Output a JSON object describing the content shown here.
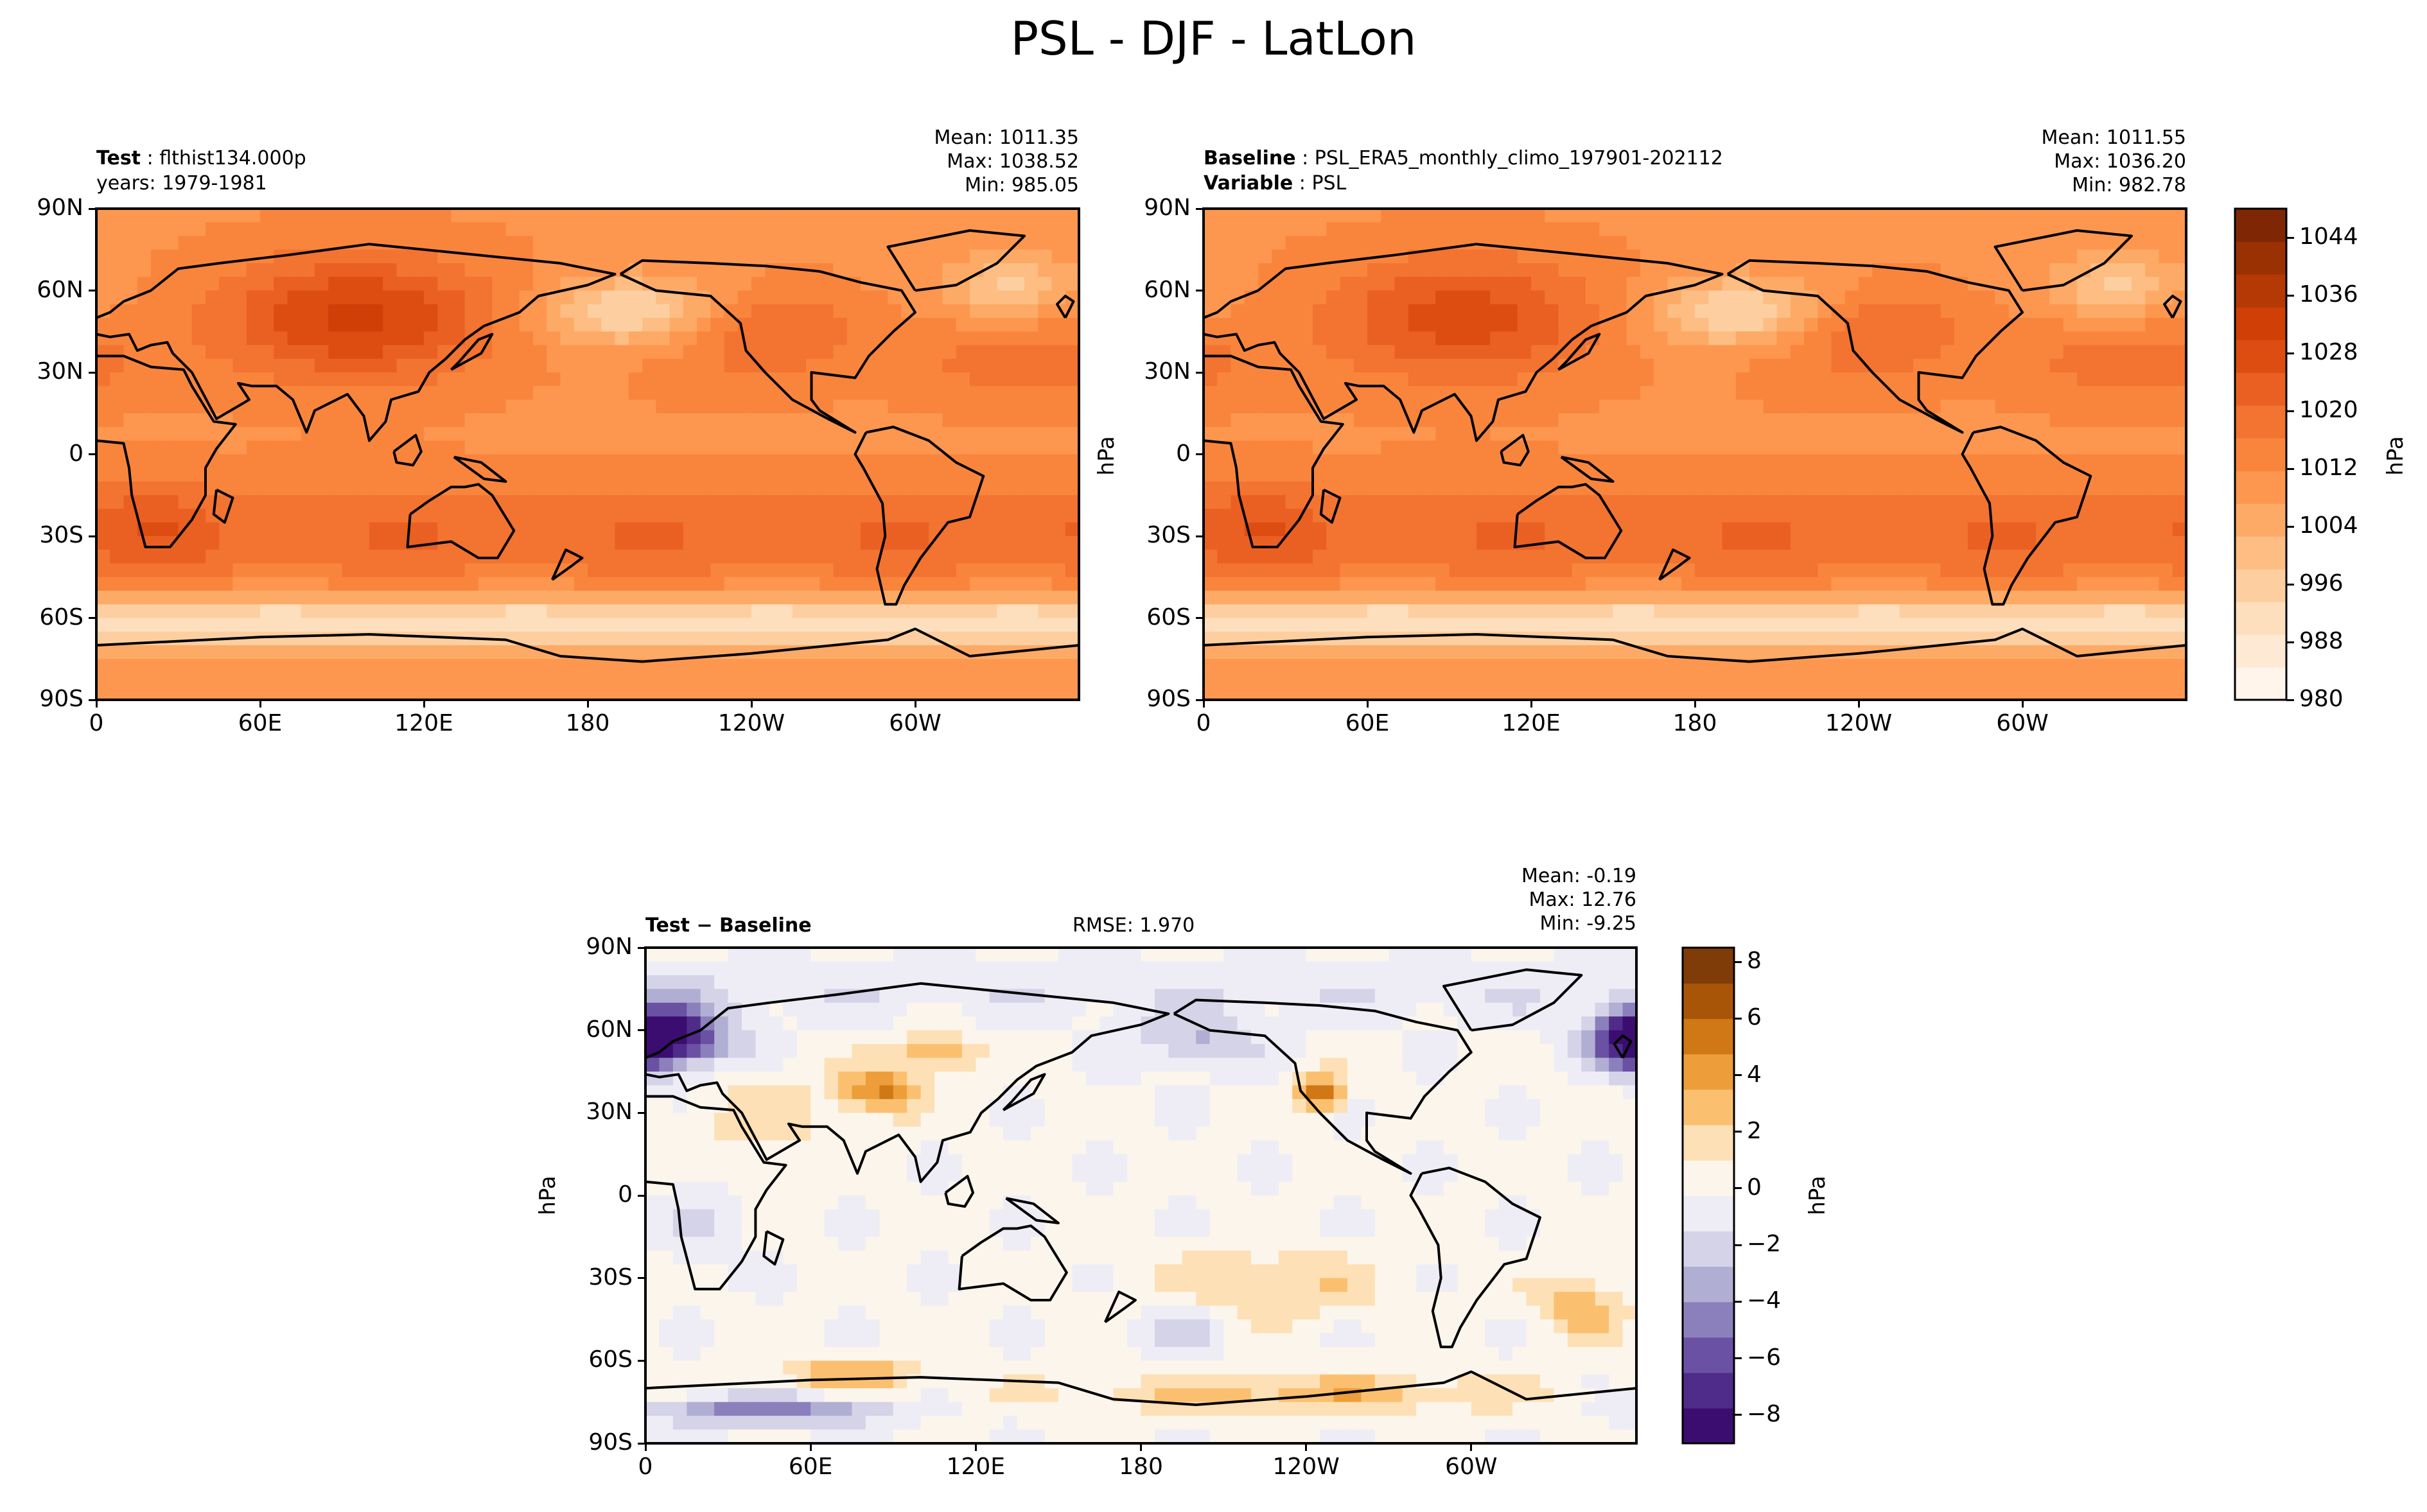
{
  "title": "PSL - DJF - LatLon",
  "colors": {
    "seq": [
      "#fff5eb",
      "#feead4",
      "#fddfbe",
      "#fdcfa0",
      "#fdbd83",
      "#fdaa67",
      "#fd974f",
      "#f9853d",
      "#f37330",
      "#ea6023",
      "#dd4d12",
      "#cf3f06",
      "#b53904",
      "#9a3103",
      "#7f2704"
    ],
    "div": [
      "#3b0d70",
      "#4f2c8a",
      "#6a51a3",
      "#8b80bb",
      "#b1aed3",
      "#d4d3e8",
      "#eeedf5",
      "#fbf5ec",
      "#fde0b5",
      "#fbc06f",
      "#ed9e3b",
      "#d07716",
      "#a85508",
      "#7f3b08"
    ],
    "coast": "#000000"
  },
  "panels": {
    "test": {
      "label_key": "Test",
      "label_val": "flthist134.000p",
      "line2": "years: 1979-1981",
      "stats": [
        "Mean: 1011.35",
        "Max: 1038.52",
        "Min: 985.05"
      ]
    },
    "baseline": {
      "label_key": "Baseline",
      "label_val": "PSL_ERA5_monthly_climo_197901-202112",
      "label2_key": "Variable",
      "label2_val": "PSL",
      "stats": [
        "Mean: 1011.55",
        "Max: 1036.20",
        "Min: 982.78"
      ]
    },
    "diff": {
      "label": "Test − Baseline",
      "rmse": "RMSE: 1.970",
      "stats": [
        "Mean: -0.19",
        "Max: 12.76",
        "Min: -9.25"
      ]
    }
  },
  "axes": {
    "lat_ticks": [
      "90N",
      "60N",
      "30N",
      "0",
      "30S",
      "60S",
      "90S"
    ],
    "lon_ticks": [
      "0",
      "60E",
      "120E",
      "180",
      "120W",
      "60W"
    ],
    "unit": "hPa"
  },
  "colorbars": {
    "main": {
      "unit": "hPa",
      "ticks": [
        "1044",
        "1036",
        "1028",
        "1020",
        "1012",
        "1004",
        "996",
        "988",
        "980"
      ]
    },
    "diff": {
      "unit": "hPa",
      "ticks": [
        "8",
        "6",
        "4",
        "2",
        "0",
        "−2",
        "−4",
        "−6",
        "−8"
      ]
    }
  },
  "chart_data": [
    {
      "type": "heatmap",
      "title": "Test",
      "xlabel": "",
      "ylabel": "",
      "xlim": [
        0,
        360
      ],
      "ylim": [
        -90,
        90
      ],
      "units": "hPa",
      "mean": 1011.35,
      "max": 1038.52,
      "min": 985.05,
      "colorbar_range": [
        980,
        1048
      ]
    },
    {
      "type": "heatmap",
      "title": "Baseline",
      "xlabel": "",
      "ylabel": "hPa",
      "xlim": [
        0,
        360
      ],
      "ylim": [
        -90,
        90
      ],
      "units": "hPa",
      "mean": 1011.55,
      "max": 1036.2,
      "min": 982.78,
      "colorbar_range": [
        980,
        1048
      ]
    },
    {
      "type": "heatmap",
      "title": "Test − Baseline",
      "xlabel": "",
      "ylabel": "hPa",
      "xlim": [
        0,
        360
      ],
      "ylim": [
        -90,
        90
      ],
      "units": "hPa",
      "mean": -0.19,
      "max": 12.76,
      "min": -9.25,
      "rmse": 1.97,
      "colorbar_range": [
        -9,
        8.5
      ]
    }
  ]
}
